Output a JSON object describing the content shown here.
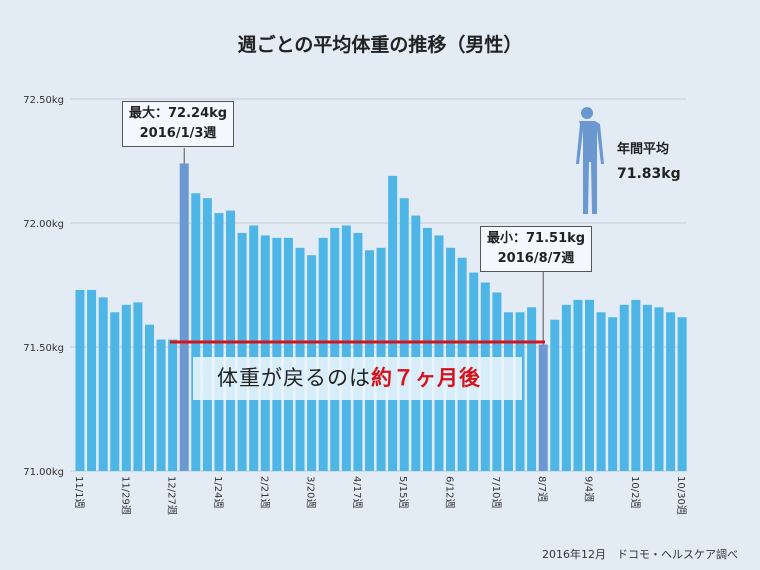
{
  "chart_data": {
    "type": "bar",
    "title": "週ごとの平均体重の推移（男性）",
    "ylim": [
      71.0,
      72.5
    ],
    "y_ticks": [
      "71.00kg",
      "71.50kg",
      "72.00kg",
      "72.50kg"
    ],
    "y_tick_values": [
      71.0,
      71.5,
      72.0,
      72.5
    ],
    "grid": true,
    "x_tick_labels": [
      "11/1週",
      "11/29週",
      "12/27週",
      "1/24週",
      "2/21週",
      "3/20週",
      "4/17週",
      "5/15週",
      "6/12週",
      "7/10週",
      "8/7週",
      "9/4週",
      "10/2週",
      "10/30週"
    ],
    "x_tick_every": 4,
    "values": [
      71.73,
      71.73,
      71.7,
      71.64,
      71.67,
      71.68,
      71.59,
      71.53,
      71.53,
      72.24,
      72.12,
      72.1,
      72.04,
      72.05,
      71.96,
      71.99,
      71.95,
      71.94,
      71.94,
      71.9,
      71.87,
      71.94,
      71.98,
      71.99,
      71.96,
      71.89,
      71.9,
      72.19,
      72.1,
      72.03,
      71.98,
      71.95,
      71.9,
      71.86,
      71.8,
      71.76,
      71.72,
      71.64,
      71.64,
      71.66,
      71.51,
      71.61,
      71.67,
      71.69,
      71.69,
      71.64,
      71.62,
      71.67,
      71.69,
      71.67,
      71.66,
      71.64,
      71.62
    ],
    "highlight_indices": [
      9,
      40
    ],
    "colors": {
      "bar": "#4db6e6",
      "highlight": "#6b98d0",
      "line": "#d8121a",
      "background": "#e3ebf5",
      "figure": "#6b98d0"
    },
    "reference_line_value": 71.52,
    "annotations": {
      "max": {
        "line1": "最大：72.24kg",
        "line2": "2016/1/3週"
      },
      "min": {
        "line1": "最小：71.51kg",
        "line2": "2016/8/7週"
      },
      "average": {
        "label": "年間平均",
        "value": "71.83kg",
        "icon": "person-icon"
      },
      "banner": {
        "text_black": "体重が戻るのは",
        "text_red": "約７ヶ月後"
      }
    },
    "source": "2016年12月　ドコモ・ヘルスケア調べ"
  }
}
